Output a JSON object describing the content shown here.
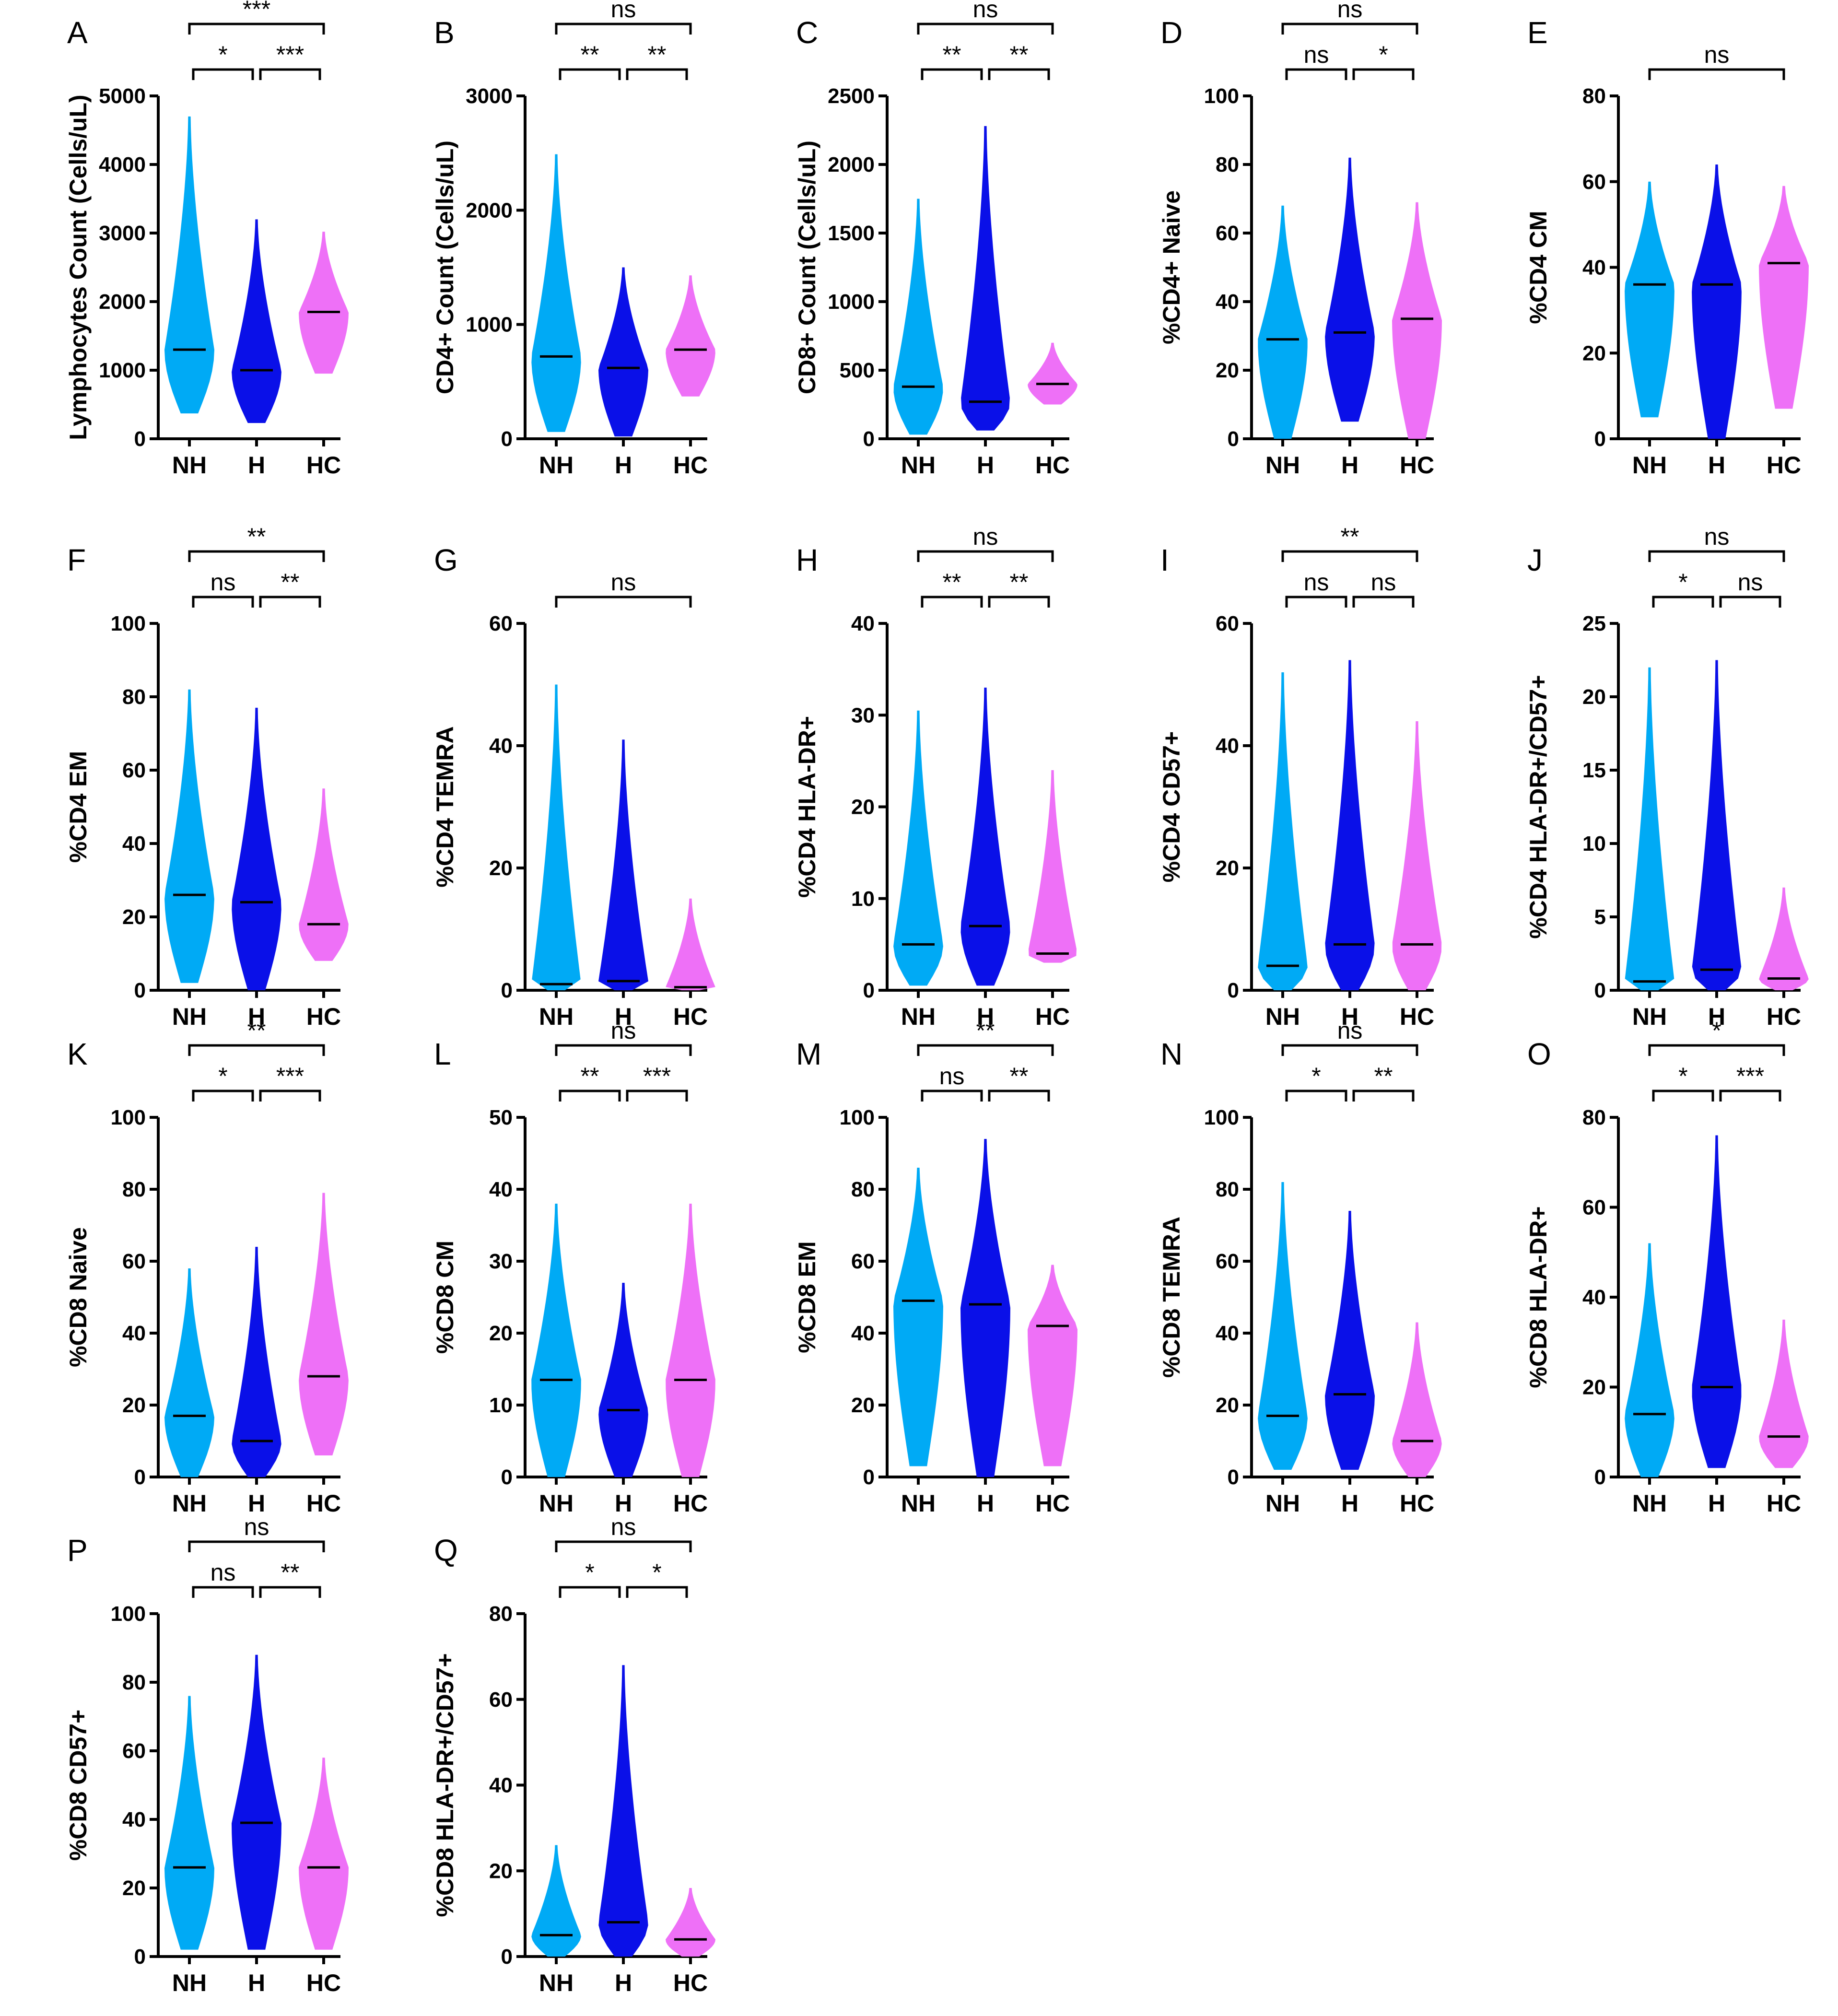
{
  "colors": {
    "NH": "#00AAF5",
    "H": "#0A10E8",
    "HC": "#EE70F7",
    "median": "#000000"
  },
  "chart_data": [
    {
      "letter": "A",
      "type": "violin",
      "ylabel": "Lymphocytes Count (Cells/uL)",
      "categories": [
        "NH",
        "H",
        "HC"
      ],
      "ylim": [
        0,
        5000
      ],
      "ticks": [
        "0",
        "1000",
        "2000",
        "3000",
        "4000",
        "5000"
      ],
      "series": [
        {
          "name": "NH",
          "min": 370,
          "max": 4700,
          "median": 1300
        },
        {
          "name": "H",
          "min": 230,
          "max": 3200,
          "median": 1000
        },
        {
          "name": "HC",
          "min": 950,
          "max": 3020,
          "median": 1850
        }
      ],
      "comparisons": [
        {
          "label": "*",
          "groups": [
            "NH",
            "H"
          ]
        },
        {
          "label": "***",
          "groups": [
            "H",
            "HC"
          ]
        },
        {
          "label": "***",
          "groups": [
            "NH",
            "HC"
          ]
        }
      ]
    },
    {
      "letter": "B",
      "type": "violin",
      "ylabel": "CD4+ Count (Cells/uL)",
      "categories": [
        "NH",
        "H",
        "HC"
      ],
      "ylim": [
        0,
        3000
      ],
      "ticks": [
        "0",
        "1000",
        "2000",
        "3000"
      ],
      "series": [
        {
          "name": "NH",
          "min": 60,
          "max": 2490,
          "median": 720
        },
        {
          "name": "H",
          "min": 20,
          "max": 1500,
          "median": 620
        },
        {
          "name": "HC",
          "min": 370,
          "max": 1430,
          "median": 780
        }
      ],
      "comparisons": [
        {
          "label": "**",
          "groups": [
            "NH",
            "H"
          ]
        },
        {
          "label": "**",
          "groups": [
            "H",
            "HC"
          ]
        },
        {
          "label": "ns",
          "groups": [
            "NH",
            "HC"
          ]
        }
      ]
    },
    {
      "letter": "C",
      "type": "violin",
      "ylabel": "CD8+ Count (Cells/uL)",
      "categories": [
        "NH",
        "H",
        "HC"
      ],
      "ylim": [
        0,
        2500
      ],
      "ticks": [
        "0",
        "500",
        "1000",
        "1500",
        "2000",
        "2500"
      ],
      "series": [
        {
          "name": "NH",
          "min": 30,
          "max": 1750,
          "median": 380
        },
        {
          "name": "H",
          "min": 60,
          "max": 2280,
          "median": 270
        },
        {
          "name": "HC",
          "min": 250,
          "max": 700,
          "median": 400
        }
      ],
      "comparisons": [
        {
          "label": "**",
          "groups": [
            "NH",
            "H"
          ]
        },
        {
          "label": "**",
          "groups": [
            "H",
            "HC"
          ]
        },
        {
          "label": "ns",
          "groups": [
            "NH",
            "HC"
          ]
        }
      ]
    },
    {
      "letter": "D",
      "type": "violin",
      "ylabel": "%CD4+ Naive",
      "categories": [
        "NH",
        "H",
        "HC"
      ],
      "ylim": [
        0,
        100
      ],
      "ticks": [
        "0",
        "20",
        "40",
        "60",
        "80",
        "100"
      ],
      "series": [
        {
          "name": "NH",
          "min": 0,
          "max": 68,
          "median": 29
        },
        {
          "name": "H",
          "min": 5,
          "max": 82,
          "median": 31
        },
        {
          "name": "HC",
          "min": 0,
          "max": 69,
          "median": 35
        }
      ],
      "comparisons": [
        {
          "label": "ns",
          "groups": [
            "NH",
            "H"
          ]
        },
        {
          "label": "*",
          "groups": [
            "H",
            "HC"
          ]
        },
        {
          "label": "ns",
          "groups": [
            "NH",
            "HC"
          ]
        }
      ]
    },
    {
      "letter": "E",
      "type": "violin",
      "ylabel": "%CD4 CM",
      "categories": [
        "NH",
        "H",
        "HC"
      ],
      "ylim": [
        0,
        80
      ],
      "ticks": [
        "0",
        "20",
        "40",
        "60",
        "80"
      ],
      "series": [
        {
          "name": "NH",
          "min": 5,
          "max": 60,
          "median": 36
        },
        {
          "name": "H",
          "min": 0,
          "max": 64,
          "median": 36
        },
        {
          "name": "HC",
          "min": 7,
          "max": 59,
          "median": 41
        }
      ],
      "comparisons": [
        {
          "label": "ns",
          "groups": [
            "NH",
            "HC"
          ]
        }
      ]
    },
    {
      "letter": "F",
      "type": "violin",
      "ylabel": "%CD4 EM",
      "categories": [
        "NH",
        "H",
        "HC"
      ],
      "ylim": [
        0,
        100
      ],
      "ticks": [
        "0",
        "20",
        "40",
        "60",
        "80",
        "100"
      ],
      "series": [
        {
          "name": "NH",
          "min": 2,
          "max": 82,
          "median": 26
        },
        {
          "name": "H",
          "min": 0,
          "max": 77,
          "median": 24
        },
        {
          "name": "HC",
          "min": 8,
          "max": 55,
          "median": 18
        }
      ],
      "comparisons": [
        {
          "label": "ns",
          "groups": [
            "NH",
            "H"
          ]
        },
        {
          "label": "**",
          "groups": [
            "H",
            "HC"
          ]
        },
        {
          "label": "**",
          "groups": [
            "NH",
            "HC"
          ]
        }
      ]
    },
    {
      "letter": "G",
      "type": "violin",
      "ylabel": "%CD4 TEMRA",
      "categories": [
        "NH",
        "H",
        "HC"
      ],
      "ylim": [
        0,
        60
      ],
      "ticks": [
        "0",
        "20",
        "40",
        "60"
      ],
      "series": [
        {
          "name": "NH",
          "min": 0,
          "max": 50,
          "median": 1
        },
        {
          "name": "H",
          "min": 0,
          "max": 41,
          "median": 1.5
        },
        {
          "name": "HC",
          "min": 0,
          "max": 15,
          "median": 0.5
        }
      ],
      "comparisons": [
        {
          "label": "ns",
          "groups": [
            "NH",
            "HC"
          ]
        }
      ]
    },
    {
      "letter": "H",
      "type": "violin",
      "ylabel": "%CD4 HLA-DR+",
      "categories": [
        "NH",
        "H",
        "HC"
      ],
      "ylim": [
        0,
        40
      ],
      "ticks": [
        "0",
        "10",
        "20",
        "30",
        "40"
      ],
      "series": [
        {
          "name": "NH",
          "min": 0.5,
          "max": 30.5,
          "median": 5
        },
        {
          "name": "H",
          "min": 0.5,
          "max": 33,
          "median": 7
        },
        {
          "name": "HC",
          "min": 3,
          "max": 24,
          "median": 4
        }
      ],
      "comparisons": [
        {
          "label": "**",
          "groups": [
            "NH",
            "H"
          ]
        },
        {
          "label": "**",
          "groups": [
            "H",
            "HC"
          ]
        },
        {
          "label": "ns",
          "groups": [
            "NH",
            "HC"
          ]
        }
      ]
    },
    {
      "letter": "I",
      "type": "violin",
      "ylabel": "%CD4 CD57+",
      "categories": [
        "NH",
        "H",
        "HC"
      ],
      "ylim": [
        0,
        60
      ],
      "ticks": [
        "0",
        "20",
        "40",
        "60"
      ],
      "series": [
        {
          "name": "NH",
          "min": 0,
          "max": 52,
          "median": 4
        },
        {
          "name": "H",
          "min": 0,
          "max": 54,
          "median": 7.5
        },
        {
          "name": "HC",
          "min": 0,
          "max": 44,
          "median": 7.5
        }
      ],
      "comparisons": [
        {
          "label": "ns",
          "groups": [
            "NH",
            "H"
          ]
        },
        {
          "label": "ns",
          "groups": [
            "H",
            "HC"
          ]
        },
        {
          "label": "**",
          "groups": [
            "NH",
            "HC"
          ]
        }
      ]
    },
    {
      "letter": "J",
      "type": "violin",
      "ylabel": "%CD4 HLA-DR+/CD57+",
      "categories": [
        "NH",
        "H",
        "HC"
      ],
      "ylim": [
        0,
        25
      ],
      "ticks": [
        "0",
        "5",
        "10",
        "15",
        "20",
        "25"
      ],
      "series": [
        {
          "name": "NH",
          "min": 0,
          "max": 22,
          "median": 0.6
        },
        {
          "name": "H",
          "min": 0,
          "max": 22.5,
          "median": 1.4
        },
        {
          "name": "HC",
          "min": 0,
          "max": 7,
          "median": 0.8
        }
      ],
      "comparisons": [
        {
          "label": "*",
          "groups": [
            "NH",
            "H"
          ]
        },
        {
          "label": "ns",
          "groups": [
            "H",
            "HC"
          ]
        },
        {
          "label": "ns",
          "groups": [
            "NH",
            "HC"
          ]
        }
      ]
    },
    {
      "letter": "K",
      "type": "violin",
      "ylabel": "%CD8 Naive",
      "categories": [
        "NH",
        "H",
        "HC"
      ],
      "ylim": [
        0,
        100
      ],
      "ticks": [
        "0",
        "20",
        "40",
        "60",
        "80",
        "100"
      ],
      "series": [
        {
          "name": "NH",
          "min": 0,
          "max": 58,
          "median": 17
        },
        {
          "name": "H",
          "min": 0,
          "max": 64,
          "median": 10
        },
        {
          "name": "HC",
          "min": 6,
          "max": 79,
          "median": 28
        }
      ],
      "comparisons": [
        {
          "label": "*",
          "groups": [
            "NH",
            "H"
          ]
        },
        {
          "label": "***",
          "groups": [
            "H",
            "HC"
          ]
        },
        {
          "label": "**",
          "groups": [
            "NH",
            "HC"
          ]
        }
      ]
    },
    {
      "letter": "L",
      "type": "violin",
      "ylabel": "%CD8 CM",
      "categories": [
        "NH",
        "H",
        "HC"
      ],
      "ylim": [
        0,
        50
      ],
      "ticks": [
        "0",
        "10",
        "20",
        "30",
        "40",
        "50"
      ],
      "series": [
        {
          "name": "NH",
          "min": 0,
          "max": 38,
          "median": 13.5
        },
        {
          "name": "H",
          "min": 0,
          "max": 27,
          "median": 9.3
        },
        {
          "name": "HC",
          "min": 0,
          "max": 38,
          "median": 13.5
        }
      ],
      "comparisons": [
        {
          "label": "**",
          "groups": [
            "NH",
            "H"
          ]
        },
        {
          "label": "***",
          "groups": [
            "H",
            "HC"
          ]
        },
        {
          "label": "ns",
          "groups": [
            "NH",
            "HC"
          ]
        }
      ]
    },
    {
      "letter": "M",
      "type": "violin",
      "ylabel": "%CD8 EM",
      "categories": [
        "NH",
        "H",
        "HC"
      ],
      "ylim": [
        0,
        100
      ],
      "ticks": [
        "0",
        "20",
        "40",
        "60",
        "80",
        "100"
      ],
      "series": [
        {
          "name": "NH",
          "min": 3,
          "max": 86,
          "median": 49
        },
        {
          "name": "H",
          "min": 0,
          "max": 94,
          "median": 48
        },
        {
          "name": "HC",
          "min": 3,
          "max": 59,
          "median": 42
        }
      ],
      "comparisons": [
        {
          "label": "ns",
          "groups": [
            "NH",
            "H"
          ]
        },
        {
          "label": "**",
          "groups": [
            "H",
            "HC"
          ]
        },
        {
          "label": "**",
          "groups": [
            "NH",
            "HC"
          ]
        }
      ]
    },
    {
      "letter": "N",
      "type": "violin",
      "ylabel": "%CD8 TEMRA",
      "categories": [
        "NH",
        "H",
        "HC"
      ],
      "ylim": [
        0,
        100
      ],
      "ticks": [
        "0",
        "20",
        "40",
        "60",
        "80",
        "100"
      ],
      "series": [
        {
          "name": "NH",
          "min": 2,
          "max": 82,
          "median": 17
        },
        {
          "name": "H",
          "min": 2,
          "max": 74,
          "median": 23
        },
        {
          "name": "HC",
          "min": 0,
          "max": 43,
          "median": 10
        }
      ],
      "comparisons": [
        {
          "label": "*",
          "groups": [
            "NH",
            "H"
          ]
        },
        {
          "label": "**",
          "groups": [
            "H",
            "HC"
          ]
        },
        {
          "label": "ns",
          "groups": [
            "NH",
            "HC"
          ]
        }
      ]
    },
    {
      "letter": "O",
      "type": "violin",
      "ylabel": "%CD8 HLA-DR+",
      "categories": [
        "NH",
        "H",
        "HC"
      ],
      "ylim": [
        0,
        80
      ],
      "ticks": [
        "0",
        "20",
        "40",
        "60",
        "80"
      ],
      "series": [
        {
          "name": "NH",
          "min": 0,
          "max": 52,
          "median": 14
        },
        {
          "name": "H",
          "min": 2,
          "max": 76,
          "median": 20
        },
        {
          "name": "HC",
          "min": 2,
          "max": 35,
          "median": 9
        }
      ],
      "comparisons": [
        {
          "label": "*",
          "groups": [
            "NH",
            "H"
          ]
        },
        {
          "label": "***",
          "groups": [
            "H",
            "HC"
          ]
        },
        {
          "label": "*",
          "groups": [
            "NH",
            "HC"
          ]
        }
      ]
    },
    {
      "letter": "P",
      "type": "violin",
      "ylabel": "%CD8 CD57+",
      "categories": [
        "NH",
        "H",
        "HC"
      ],
      "ylim": [
        0,
        100
      ],
      "ticks": [
        "0",
        "20",
        "40",
        "60",
        "80",
        "100"
      ],
      "series": [
        {
          "name": "NH",
          "min": 2,
          "max": 76,
          "median": 26
        },
        {
          "name": "H",
          "min": 2,
          "max": 88,
          "median": 39
        },
        {
          "name": "HC",
          "min": 2,
          "max": 58,
          "median": 26
        }
      ],
      "comparisons": [
        {
          "label": "ns",
          "groups": [
            "NH",
            "H"
          ]
        },
        {
          "label": "**",
          "groups": [
            "H",
            "HC"
          ]
        },
        {
          "label": "ns",
          "groups": [
            "NH",
            "HC"
          ]
        }
      ]
    },
    {
      "letter": "Q",
      "type": "violin",
      "ylabel": "%CD8 HLA-DR+/CD57+",
      "categories": [
        "NH",
        "H",
        "HC"
      ],
      "ylim": [
        0,
        80
      ],
      "ticks": [
        "0",
        "20",
        "40",
        "60",
        "80"
      ],
      "series": [
        {
          "name": "NH",
          "min": 0,
          "max": 26,
          "median": 5
        },
        {
          "name": "H",
          "min": 0,
          "max": 68,
          "median": 8
        },
        {
          "name": "HC",
          "min": 0,
          "max": 16,
          "median": 4
        }
      ],
      "comparisons": [
        {
          "label": "*",
          "groups": [
            "NH",
            "H"
          ]
        },
        {
          "label": "*",
          "groups": [
            "H",
            "HC"
          ]
        },
        {
          "label": "ns",
          "groups": [
            "NH",
            "HC"
          ]
        }
      ]
    }
  ]
}
